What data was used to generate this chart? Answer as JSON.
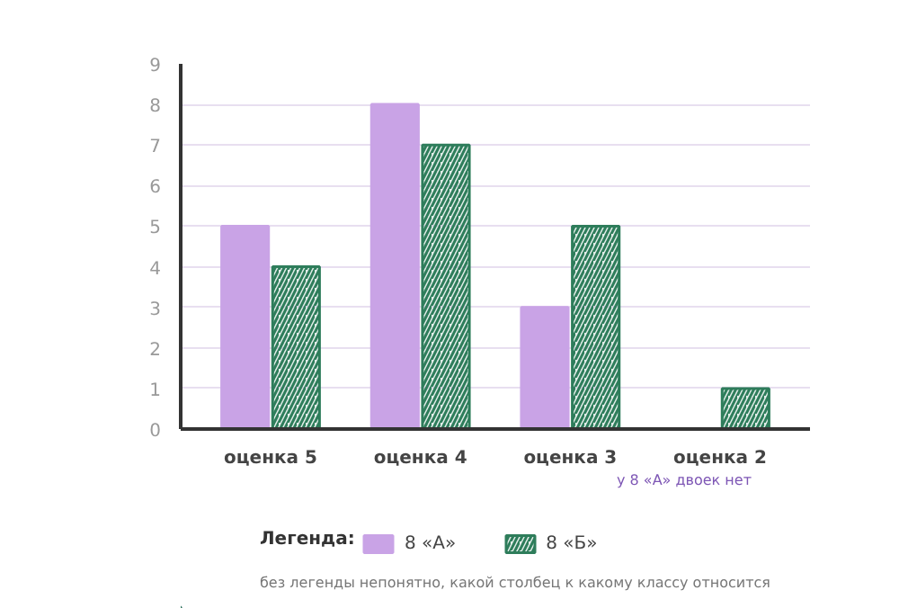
{
  "chart_data": {
    "type": "bar",
    "categories": [
      "оценка 5",
      "оценка 4",
      "оценка 3",
      "оценка 2"
    ],
    "series": [
      {
        "name": "8 «А»",
        "color": "#c9a3e6",
        "values": [
          5,
          8,
          3,
          0
        ]
      },
      {
        "name": "8 «Б»",
        "color": "#2e7d5b",
        "values": [
          4,
          7,
          5,
          1
        ]
      }
    ],
    "ylim": [
      0,
      9
    ],
    "yticks": [
      0,
      1,
      2,
      3,
      4,
      5,
      6,
      7,
      8,
      9
    ],
    "grid": "y",
    "legend": "bottom",
    "legend_title": "Легенда:",
    "annotations": [
      "у 8 «А» двоек нет",
      "без легенды непонятно, какой столбец к какому классу относится"
    ]
  }
}
